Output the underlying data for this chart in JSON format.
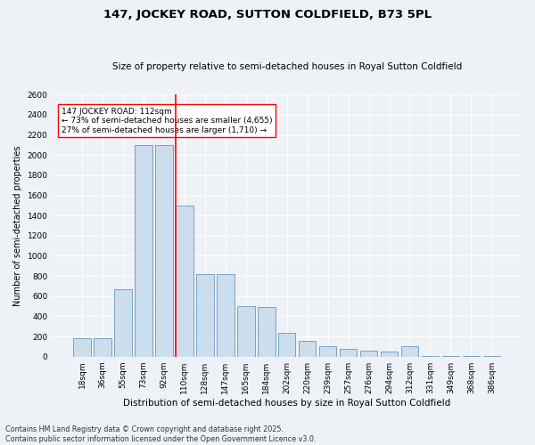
{
  "title": "147, JOCKEY ROAD, SUTTON COLDFIELD, B73 5PL",
  "subtitle": "Size of property relative to semi-detached houses in Royal Sutton Coldfield",
  "xlabel": "Distribution of semi-detached houses by size in Royal Sutton Coldfield",
  "ylabel": "Number of semi-detached properties",
  "categories": [
    "18sqm",
    "36sqm",
    "55sqm",
    "73sqm",
    "92sqm",
    "110sqm",
    "128sqm",
    "147sqm",
    "165sqm",
    "184sqm",
    "202sqm",
    "220sqm",
    "239sqm",
    "257sqm",
    "276sqm",
    "294sqm",
    "312sqm",
    "331sqm",
    "349sqm",
    "368sqm",
    "386sqm"
  ],
  "values": [
    180,
    180,
    670,
    2100,
    2100,
    1500,
    820,
    820,
    500,
    490,
    240,
    160,
    100,
    80,
    60,
    50,
    100,
    10,
    5,
    10,
    5
  ],
  "bar_color": "#ccdded",
  "bar_edge_color": "#6699bb",
  "red_line_index": 5,
  "red_line_label": "147 JOCKEY ROAD: 112sqm",
  "annotation_line1": "← 73% of semi-detached houses are smaller (4,655)",
  "annotation_line2": "27% of semi-detached houses are larger (1,710) →",
  "ylim": [
    0,
    2600
  ],
  "yticks": [
    0,
    200,
    400,
    600,
    800,
    1000,
    1200,
    1400,
    1600,
    1800,
    2000,
    2200,
    2400,
    2600
  ],
  "footnote1": "Contains HM Land Registry data © Crown copyright and database right 2025.",
  "footnote2": "Contains public sector information licensed under the Open Government Licence v3.0.",
  "title_fontsize": 9.5,
  "subtitle_fontsize": 7.5,
  "xlabel_fontsize": 7.5,
  "ylabel_fontsize": 7,
  "tick_fontsize": 6.5,
  "annotation_fontsize": 6.5,
  "footnote_fontsize": 5.8,
  "bg_color": "#eef2f6",
  "plot_bg_color": "#eef2f6",
  "grid_color": "#ffffff"
}
